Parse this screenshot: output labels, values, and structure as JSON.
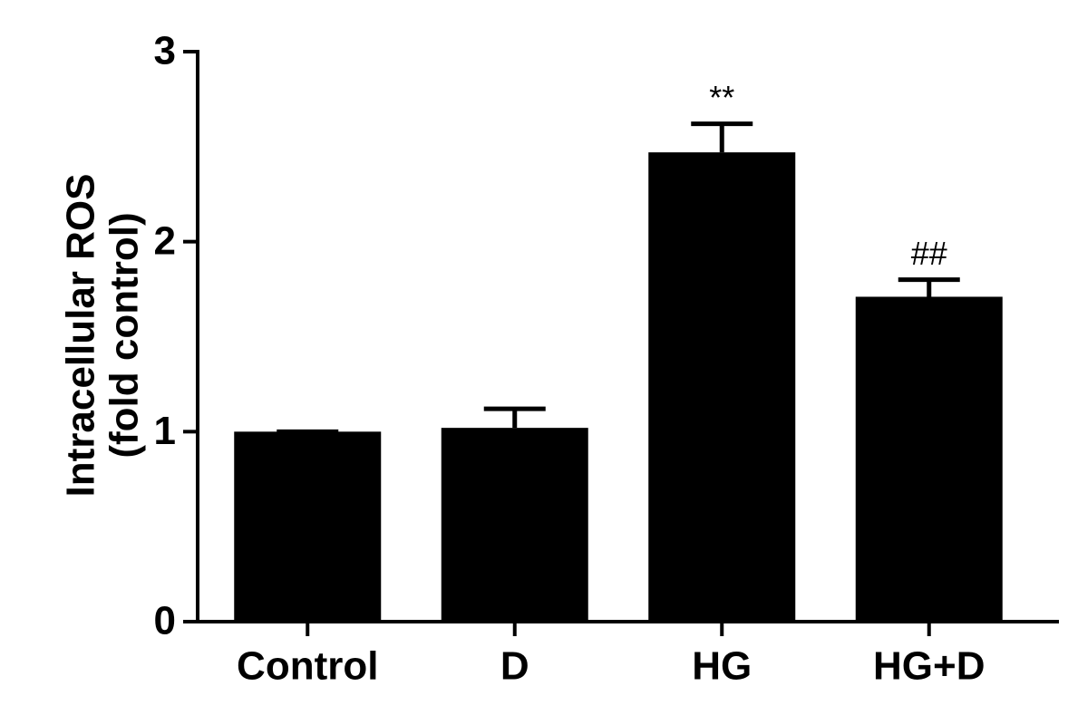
{
  "chart_data": {
    "type": "bar",
    "y_label": [
      "Intracellular ROS",
      "(fold control)"
    ],
    "categories": [
      "Control",
      "D",
      "HG",
      "HG+D"
    ],
    "values": [
      1.0,
      1.02,
      2.47,
      1.71
    ],
    "errors": [
      0,
      0.1,
      0.15,
      0.09
    ],
    "annotations": [
      {
        "category": "HG",
        "text": "**"
      },
      {
        "category": "HG+D",
        "text": "##"
      }
    ],
    "color": "#000000",
    "ylim": [
      0,
      3
    ],
    "yticks": [
      0,
      1,
      2,
      3
    ],
    "grid": false
  }
}
